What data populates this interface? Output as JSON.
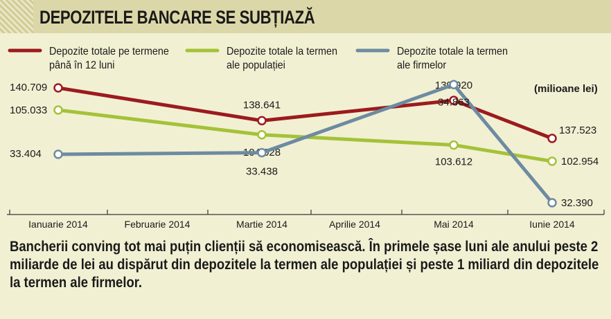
{
  "header": {
    "title": "DEPOZITELE BANCARE SE SUBȚIAZĂ"
  },
  "chart_data": {
    "type": "line",
    "unit_label": "(milioane lei)",
    "categories": [
      "Ianuarie 2014",
      "Februarie 2014",
      "Martie 2014",
      "Aprilie 2014",
      "Mai 2014",
      "Iunie 2014"
    ],
    "series": [
      {
        "name": [
          "Depozite totale pe termene",
          "până în 12 luni"
        ],
        "color": "#9b1b1e",
        "points": [
          {
            "cat": 0,
            "value": 140709,
            "label": "140.709"
          },
          {
            "cat": 2,
            "value": 138641,
            "label": "138.641"
          },
          {
            "cat": 4,
            "value": 139920,
            "label": "139.920"
          },
          {
            "cat": 5,
            "value": 137523,
            "label": "137.523"
          }
        ]
      },
      {
        "name": [
          "Depozite totale la termen",
          "ale populației"
        ],
        "color": "#a4c238",
        "points": [
          {
            "cat": 0,
            "value": 105033,
            "label": "105.033"
          },
          {
            "cat": 2,
            "value": 104028,
            "label": "104.028"
          },
          {
            "cat": 4,
            "value": 103612,
            "label": "103.612"
          },
          {
            "cat": 5,
            "value": 102954,
            "label": "102.954"
          }
        ]
      },
      {
        "name": [
          "Depozite totale la termen",
          "ale firmelor"
        ],
        "color": "#6d8ba1",
        "points": [
          {
            "cat": 0,
            "value": 33404,
            "label": "33.404"
          },
          {
            "cat": 2,
            "value": 33438,
            "label": "33.438"
          },
          {
            "cat": 4,
            "value": 34863,
            "label": "34.863"
          },
          {
            "cat": 5,
            "value": 32390,
            "label": "32.390"
          }
        ]
      }
    ],
    "legend_position": "top",
    "grid": false
  },
  "footer": {
    "text": "Bancherii conving tot mai puțin clienții să economisească. În primele șase luni ale anului peste 2 miliarde de lei au dispărut din depozitele la termen ale populației și peste 1 miliard din depozitele la termen ale firmelor."
  }
}
